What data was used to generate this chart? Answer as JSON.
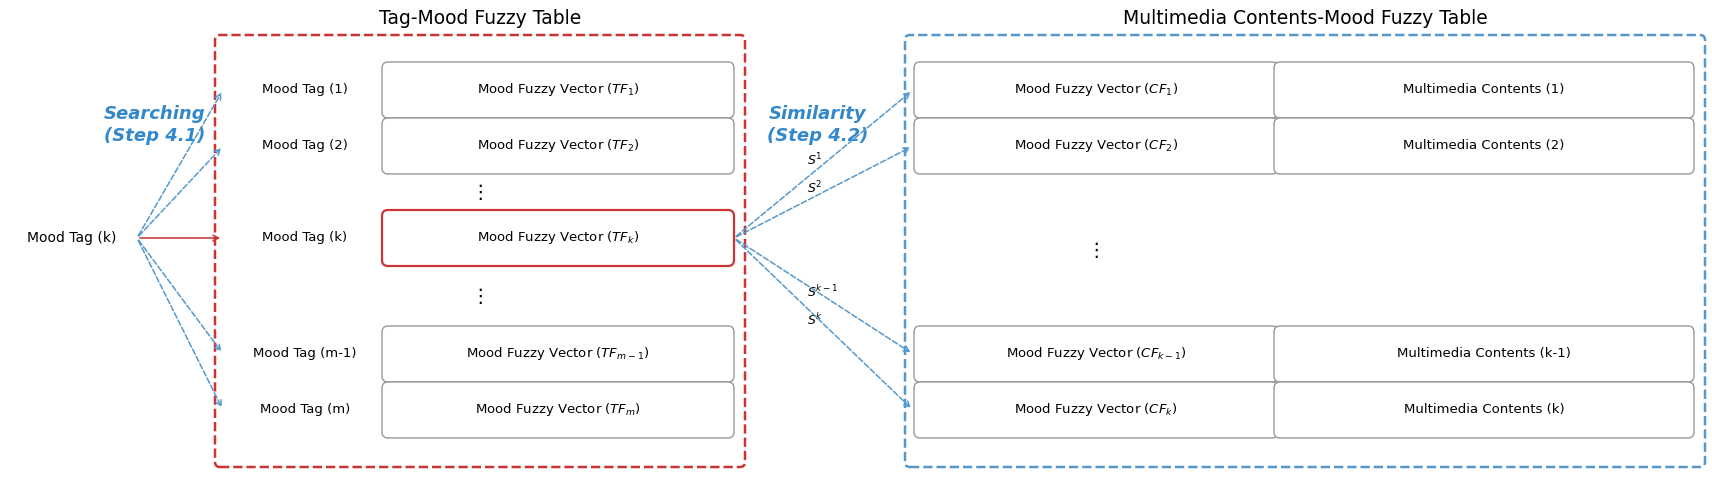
{
  "fig_width": 17.12,
  "fig_height": 4.8,
  "dpi": 100,
  "bg_color": "#ffffff",
  "title1": "Tag-Mood Fuzzy Table",
  "title2": "Multimedia Contents-Mood Fuzzy Table",
  "searching_label": "Searching\n(Step 4.1)",
  "similarity_label": "Similarity\n(Step 4.2)",
  "mood_tag_k_label": "Mood Tag (k)",
  "left_rows": [
    {
      "tag": "Mood Tag (1)",
      "sub": "1"
    },
    {
      "tag": "Mood Tag (2)",
      "sub": "2"
    },
    {
      "tag": "Mood Tag (k)",
      "sub": "k",
      "highlight": true
    },
    {
      "tag": "Mood Tag (m-1)",
      "sub": "m-1"
    },
    {
      "tag": "Mood Tag (m)",
      "sub": "m"
    }
  ],
  "right_rows": [
    {
      "sub": "1",
      "content": "Multimedia Contents (1)"
    },
    {
      "sub": "2",
      "content": "Multimedia Contents (2)"
    },
    {
      "sub": "k-1",
      "content": "Multimedia Contents (k-1)"
    },
    {
      "sub": "k",
      "content": "Multimedia Contents (k)"
    }
  ],
  "s_labels": [
    "$S^1$",
    "$S^2$",
    "$S^{k-1}$",
    "$S^k$"
  ],
  "colors": {
    "blue_dash": "#5599cc",
    "red_dash": "#cc3333",
    "text_blue": "#3388cc",
    "box_border": "#999999",
    "lt_border": "#cc3333",
    "rt_border": "#5599cc"
  }
}
